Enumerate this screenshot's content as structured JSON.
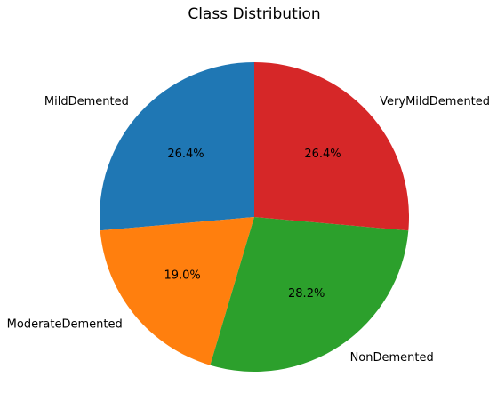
{
  "chart_data": {
    "type": "pie",
    "title": "Class Distribution",
    "start_angle_deg": 90,
    "direction": "counterclockwise",
    "slices": [
      {
        "label": "MildDemented",
        "value": 26.4,
        "pct_label": "26.4%",
        "color": "#1f77b4"
      },
      {
        "label": "ModerateDemented",
        "value": 19.0,
        "pct_label": "19.0%",
        "color": "#ff7f0e"
      },
      {
        "label": "NonDemented",
        "value": 28.2,
        "pct_label": "28.2%",
        "color": "#2ca02c"
      },
      {
        "label": "VeryMildDemented",
        "value": 26.4,
        "pct_label": "26.4%",
        "color": "#d62728"
      }
    ]
  }
}
